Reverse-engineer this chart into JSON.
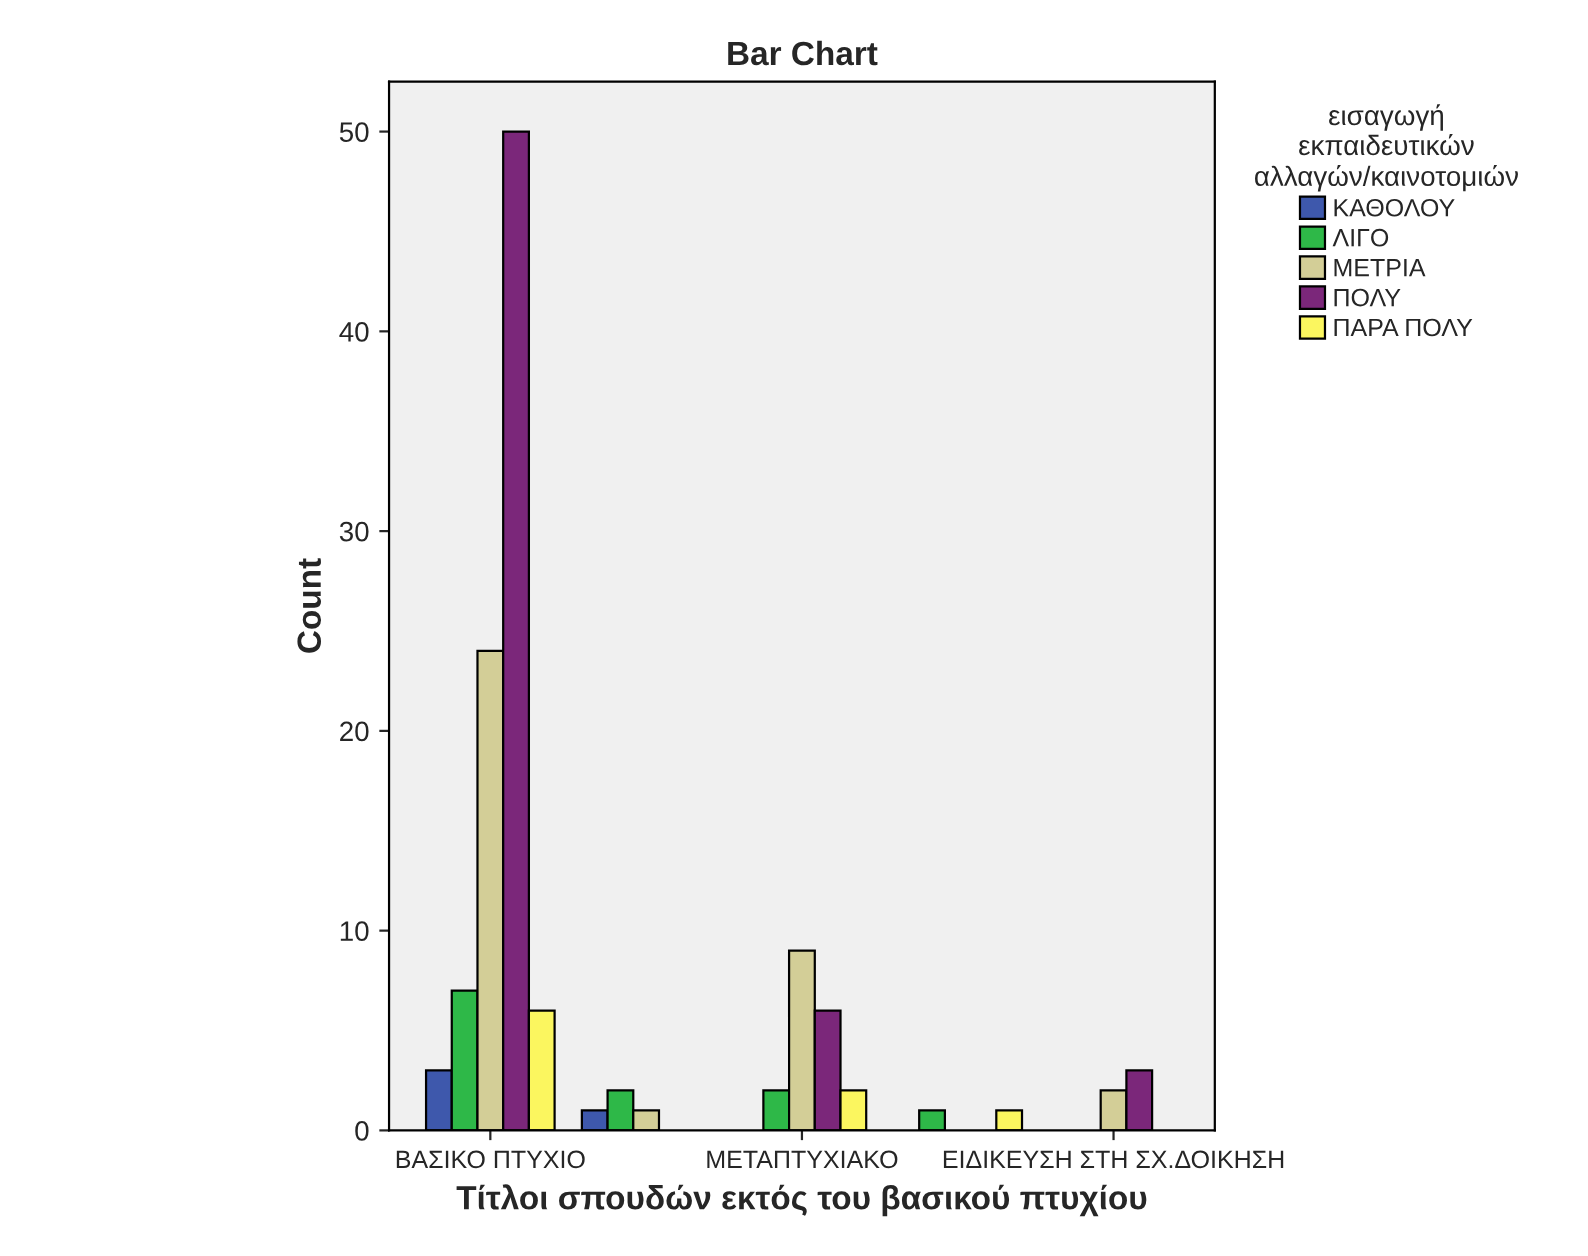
{
  "chart_data": {
    "type": "bar",
    "title": "Bar Chart",
    "xlabel": "Τίτλοι σπουδών εκτός του βασικού πτυχίου",
    "ylabel": "Count",
    "legend_title": "εισαγωγή\nεκπαιδευτικών\nαλλαγών/καινοτομιών",
    "categories": [
      "ΒΑΣΙΚΟ ΠΤΥΧΙΟ",
      null,
      "ΜΕΤΑΠΤΥΧΙΑΚΟ",
      null,
      "ΕΙΔΙΚΕΥΣΗ ΣΤΗ ΣΧ.ΔΟΙΚΗΣΗ"
    ],
    "series": [
      {
        "name": "ΚΑΘΟΛΟΥ",
        "color": "#3e58ac",
        "values": [
          3,
          1,
          null,
          null,
          null
        ]
      },
      {
        "name": "ΛΙΓΟ",
        "color": "#2eb848",
        "values": [
          7,
          2,
          2,
          1,
          null
        ]
      },
      {
        "name": "ΜΕΤΡΙΑ",
        "color": "#d3ce97",
        "values": [
          24,
          1,
          9,
          null,
          2
        ]
      },
      {
        "name": "ΠΟΛΥ",
        "color": "#7b277a",
        "values": [
          50,
          null,
          6,
          null,
          3
        ]
      },
      {
        "name": "ΠΑΡΑ ΠΟΛΥ",
        "color": "#fbf65f",
        "values": [
          6,
          null,
          2,
          1,
          null
        ]
      }
    ],
    "ylim": [
      0,
      52.5
    ],
    "yticks": [
      0,
      10,
      20,
      30,
      40,
      50
    ],
    "grid": false,
    "legend": "right"
  }
}
